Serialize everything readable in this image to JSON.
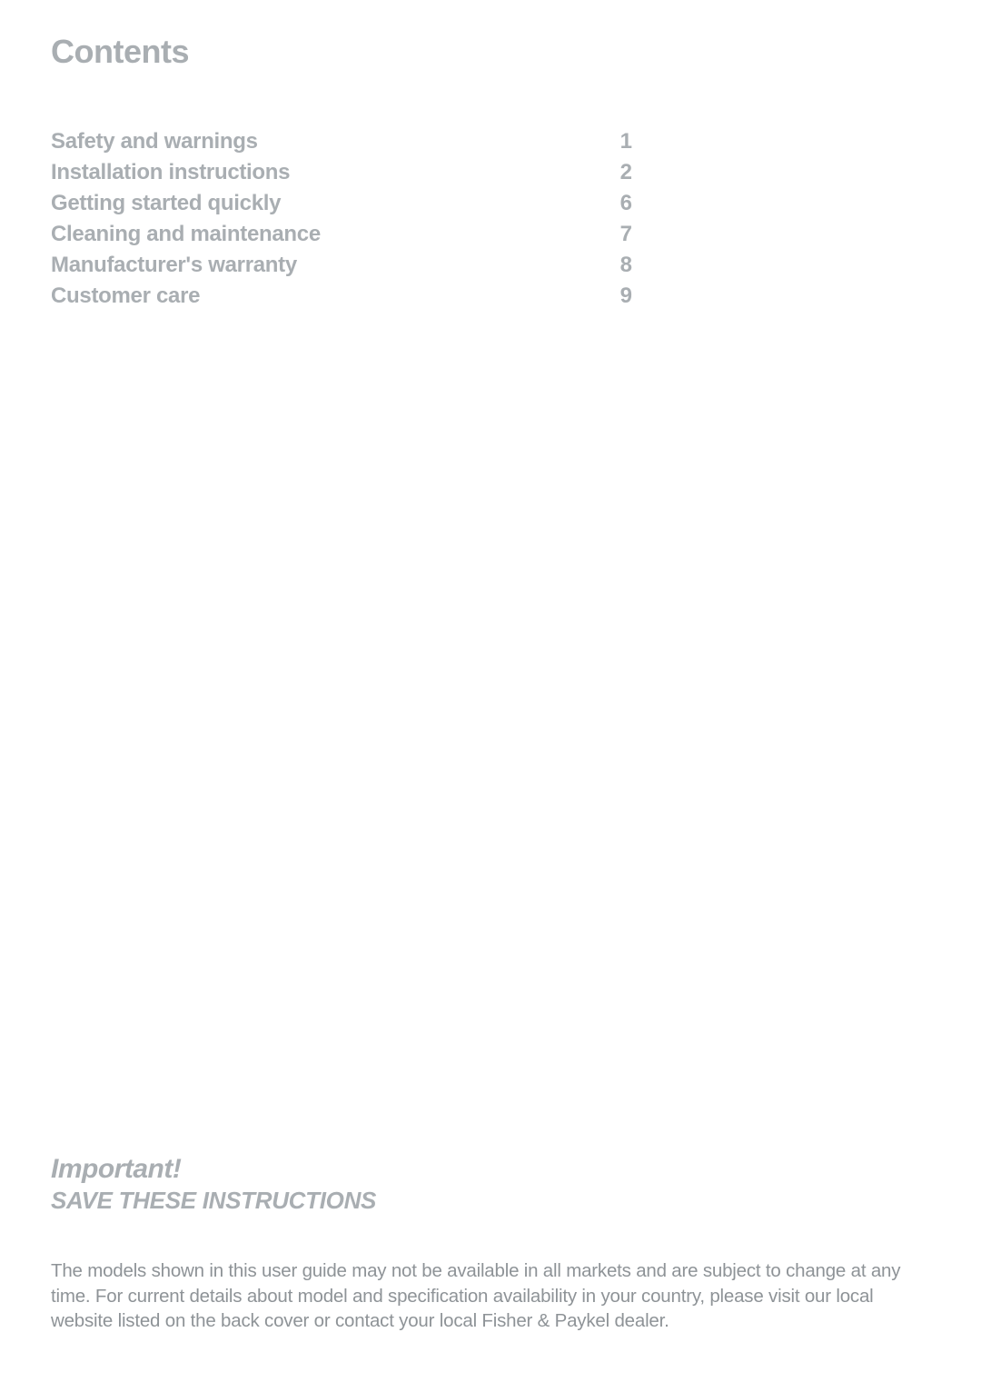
{
  "title": "Contents",
  "toc": [
    {
      "label": "Safety and warnings",
      "page": "1"
    },
    {
      "label": "Installation instructions",
      "page": "2"
    },
    {
      "label": "Getting started quickly",
      "page": "6"
    },
    {
      "label": "Cleaning and maintenance",
      "page": "7"
    },
    {
      "label": "Manufacturer's warranty",
      "page": "8"
    },
    {
      "label": "Customer care",
      "page": "9"
    }
  ],
  "footer": {
    "important": "Important!",
    "save": "SAVE THESE INSTRUCTIONS",
    "disclaimer": "The models shown in this user guide may not be available in all markets and are subject to change at any time. For current details about model and specification availability in your country, please visit our local website listed on the back cover or contact your local Fisher & Paykel dealer."
  },
  "colors": {
    "heading_text": "#a9aeb2",
    "body_text": "#8e9397",
    "background": "#ffffff"
  },
  "typography": {
    "title_fontsize": 36,
    "toc_fontsize": 24,
    "important_fontsize": 30,
    "save_fontsize": 26,
    "disclaimer_fontsize": 20.5
  }
}
